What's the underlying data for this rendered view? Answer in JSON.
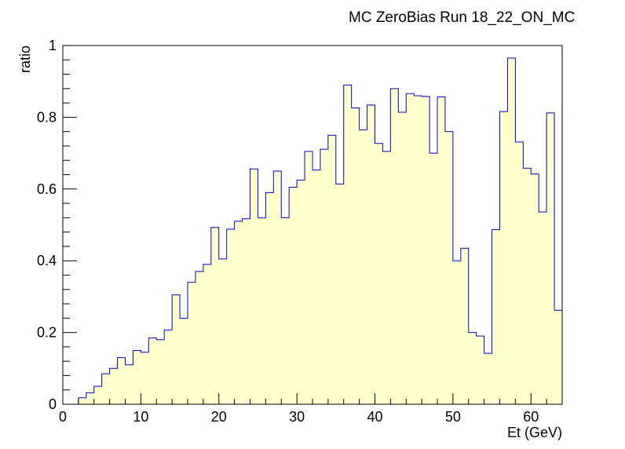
{
  "chart_data": {
    "type": "bar",
    "title": "MC ZeroBias Run 18_22_ON_MC",
    "xlabel": "Et (GeV)",
    "ylabel": "ratio",
    "xlim": [
      0,
      64
    ],
    "ylim": [
      0,
      1.0
    ],
    "x_ticks": [
      0,
      10,
      20,
      30,
      40,
      50,
      60
    ],
    "y_ticks": [
      0,
      0.2,
      0.4,
      0.6,
      0.8,
      1
    ],
    "x_tick_labels": [
      "0",
      "10",
      "20",
      "30",
      "40",
      "50",
      "60"
    ],
    "y_tick_labels": [
      "0",
      "0.2",
      "0.4",
      "0.6",
      "0.8",
      "1"
    ],
    "bin_width": 1,
    "bin_start": 0,
    "values": [
      0,
      0,
      0.018,
      0.032,
      0.05,
      0.085,
      0.1,
      0.13,
      0.11,
      0.15,
      0.145,
      0.185,
      0.18,
      0.207,
      0.305,
      0.24,
      0.34,
      0.37,
      0.39,
      0.493,
      0.405,
      0.488,
      0.51,
      0.517,
      0.656,
      0.52,
      0.59,
      0.65,
      0.52,
      0.605,
      0.625,
      0.705,
      0.653,
      0.711,
      0.75,
      0.614,
      0.89,
      0.826,
      0.765,
      0.834,
      0.727,
      0.705,
      0.88,
      0.814,
      0.866,
      0.86,
      0.858,
      0.7,
      0.857,
      0.76,
      0.4,
      0.435,
      0.2,
      0.19,
      0.142,
      0.487,
      0.816,
      0.965,
      0.731,
      0.658,
      0.642,
      0.536,
      0.812,
      0.262
    ],
    "line_color": "#0000cc",
    "fill_color": "#ffffcc",
    "frame_color": "#000000",
    "grid": false,
    "legend": "none"
  }
}
